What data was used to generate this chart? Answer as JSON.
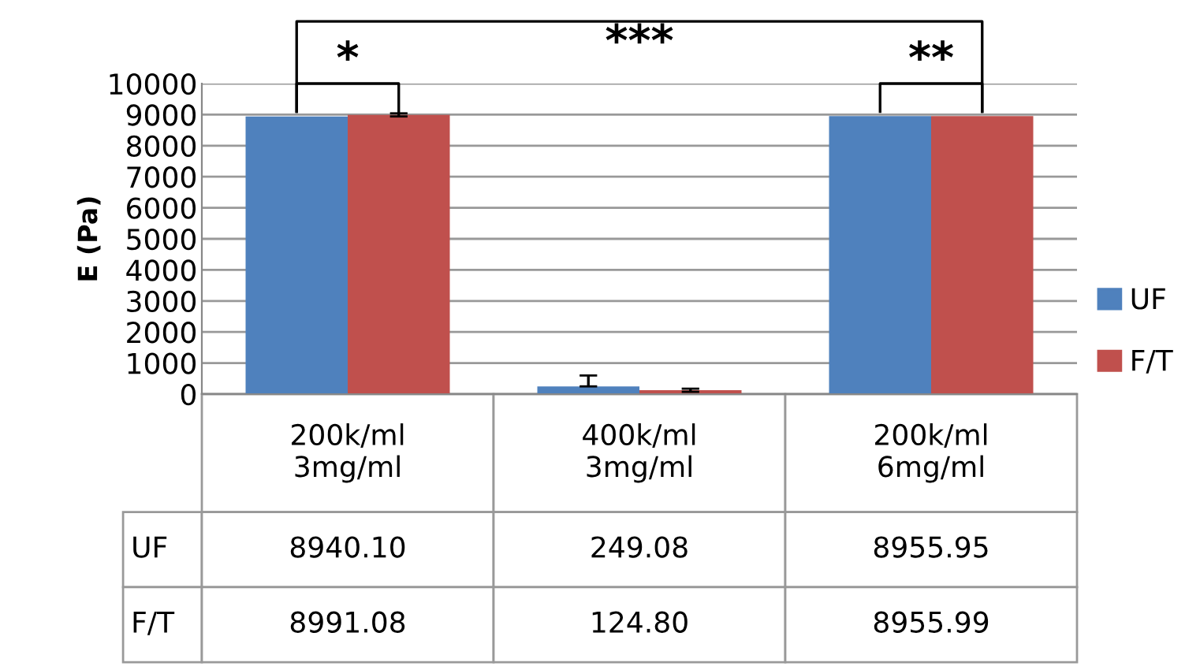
{
  "chart_data": {
    "type": "bar",
    "ylabel": "E (Pa)",
    "categories": [
      "200k/ml\n3mg/ml",
      "400k/ml\n3mg/ml",
      "200k/ml\n6mg/ml"
    ],
    "series": [
      {
        "name": "UF",
        "color": "#4f81bd",
        "values": [
          8940.1,
          249.08,
          8955.95
        ],
        "value_labels": [
          "8940.10",
          "249.08",
          "8955.95"
        ],
        "errors": [
          null,
          [
            249.08,
            600
          ],
          null
        ]
      },
      {
        "name": "F/T",
        "color": "#c0504d",
        "values": [
          8991.08,
          124.8,
          8955.99
        ],
        "value_labels": [
          "8991.08",
          "124.80",
          "8955.99"
        ],
        "errors": [
          50,
          50,
          null
        ]
      }
    ],
    "ylim": [
      0,
      10000
    ],
    "yticks": [
      0,
      1000,
      2000,
      3000,
      4000,
      5000,
      6000,
      7000,
      8000,
      9000,
      10000
    ],
    "grid": "y",
    "legend": "right",
    "annotations": [
      "*",
      "***",
      "**"
    ]
  }
}
